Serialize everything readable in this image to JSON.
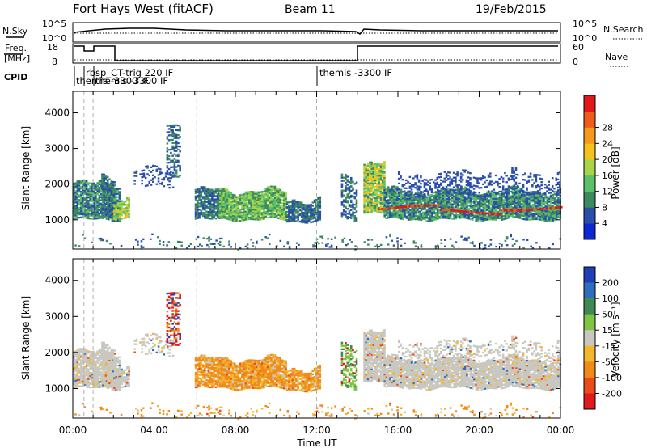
{
  "header": {
    "title": "Fort Hays West (fitACF)",
    "beam": "Beam 11",
    "date": "19/Feb/2015"
  },
  "labels": {
    "nsky": "N.Sky",
    "nsearch": "N.Search",
    "freq_line1": "Freq.",
    "freq_line2": "[MHz]",
    "nave": "Nave",
    "cpid": "CPID",
    "power_title": "Power [dB]",
    "velocity_title": "Velocity [m s⁻¹]",
    "slant_range": "Slant Range [km]",
    "time_ut": "Time UT"
  },
  "noise_panel": {
    "left_ticks": [
      "10^5",
      "10^0"
    ],
    "right_ticks": [
      "10^5",
      "10^0"
    ]
  },
  "freq_panel": {
    "left_ticks": [
      "18",
      "8"
    ],
    "right_ticks": [
      "60",
      "0"
    ]
  },
  "cpid_segments": [
    {
      "text": "rbsp_CT-trig 220 IF",
      "start_hour": 0.55
    },
    {
      "text": "themis -3300 IF",
      "start_hour": 0.55
    },
    {
      "text": "themis -3300 IF",
      "start_hour": 1.0
    },
    {
      "text": "themis -3300 IF",
      "start_hour": 12.0
    }
  ],
  "chart_data": {
    "type": "heatmap",
    "x_range_hours": [
      0,
      24
    ],
    "x_ticks": [
      "00:00",
      "04:00",
      "08:00",
      "12:00",
      "16:00",
      "20:00",
      "00:00"
    ],
    "y_range_km": [
      180,
      4600
    ],
    "y_ticks": [
      1000,
      2000,
      3000,
      4000
    ],
    "dashed_markers_hours": [
      0.55,
      1.0,
      6.1,
      12.0
    ],
    "power_scale": {
      "ticks": [
        "4",
        "8",
        "12",
        "16",
        "20",
        "24",
        "28"
      ],
      "colors": [
        "#0b28d8",
        "#2b4fa8",
        "#3d8a5f",
        "#5cbf6a",
        "#a7d449",
        "#f2c21d",
        "#f39a1a",
        "#ef5b1b",
        "#e1181b"
      ]
    },
    "velocity_scale": {
      "ticks": [
        "200",
        "100",
        "50",
        "15",
        "-15",
        "-50",
        "-100",
        "-200"
      ],
      "colors": [
        "#1f3fb4",
        "#2f6cbe",
        "#3f8a52",
        "#7fc443",
        "#c8c8c0",
        "#f2b72b",
        "#f28a1a",
        "#ed4a1c",
        "#e0191c"
      ]
    }
  }
}
